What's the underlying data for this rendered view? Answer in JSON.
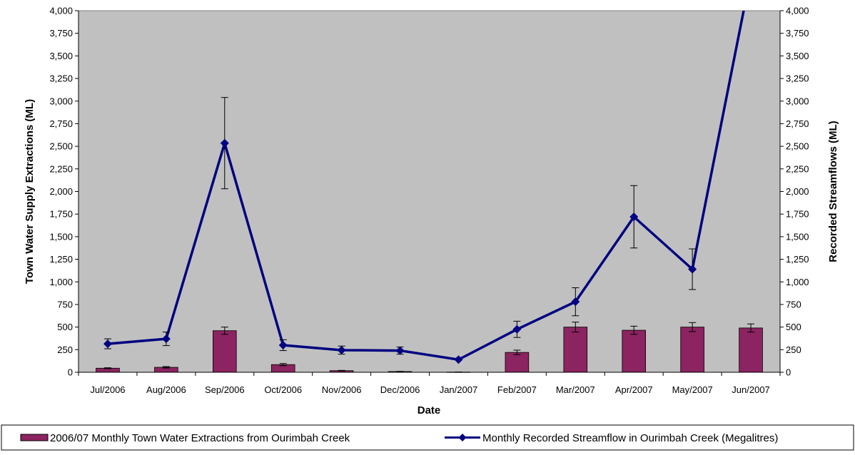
{
  "chart_data": {
    "type": "bar",
    "categories": [
      "Jul/2006",
      "Aug/2006",
      "Sep/2006",
      "Oct/2006",
      "Nov/2006",
      "Dec/2006",
      "Jan/2007",
      "Feb/2007",
      "Mar/2007",
      "Apr/2007",
      "May/2007",
      "Jun/2007"
    ],
    "xlabel": "Date",
    "ylabel_left": "Town Water Supply Extractions (ML)",
    "ylabel_right": "Recorded Streamflows (ML)",
    "ylim_left": [
      0,
      4000
    ],
    "ylim_right": [
      0,
      4000
    ],
    "ytick_step": 250,
    "yticks": [
      "0",
      "250",
      "500",
      "750",
      "1,000",
      "1,250",
      "1,500",
      "1,750",
      "2,000",
      "2,250",
      "2,500",
      "2,750",
      "3,000",
      "3,250",
      "3,500",
      "3,750",
      "4,000"
    ],
    "grid": "none",
    "plot_background": "#c0c0c0",
    "legend_position": "bottom",
    "series": [
      {
        "name": "2006/07 Monthly Town Water Extractions from Ourimbah Creek",
        "type": "bar",
        "axis": "left",
        "color": "#8b2460",
        "values": [
          45,
          55,
          460,
          85,
          18,
          8,
          2,
          220,
          500,
          465,
          500,
          490
        ],
        "error": [
          5,
          8,
          40,
          12,
          3,
          2,
          1,
          25,
          55,
          45,
          50,
          45
        ]
      },
      {
        "name": "Monthly Recorded Streamflow in Ourimbah Creek (Megalitres)",
        "type": "line",
        "axis": "right",
        "color": "#000080",
        "marker": "diamond",
        "values": [
          315,
          370,
          2535,
          300,
          245,
          240,
          140,
          475,
          780,
          1720,
          1140,
          4400
        ],
        "error": [
          55,
          75,
          505,
          60,
          45,
          40,
          null,
          90,
          155,
          345,
          225,
          null
        ]
      }
    ]
  }
}
